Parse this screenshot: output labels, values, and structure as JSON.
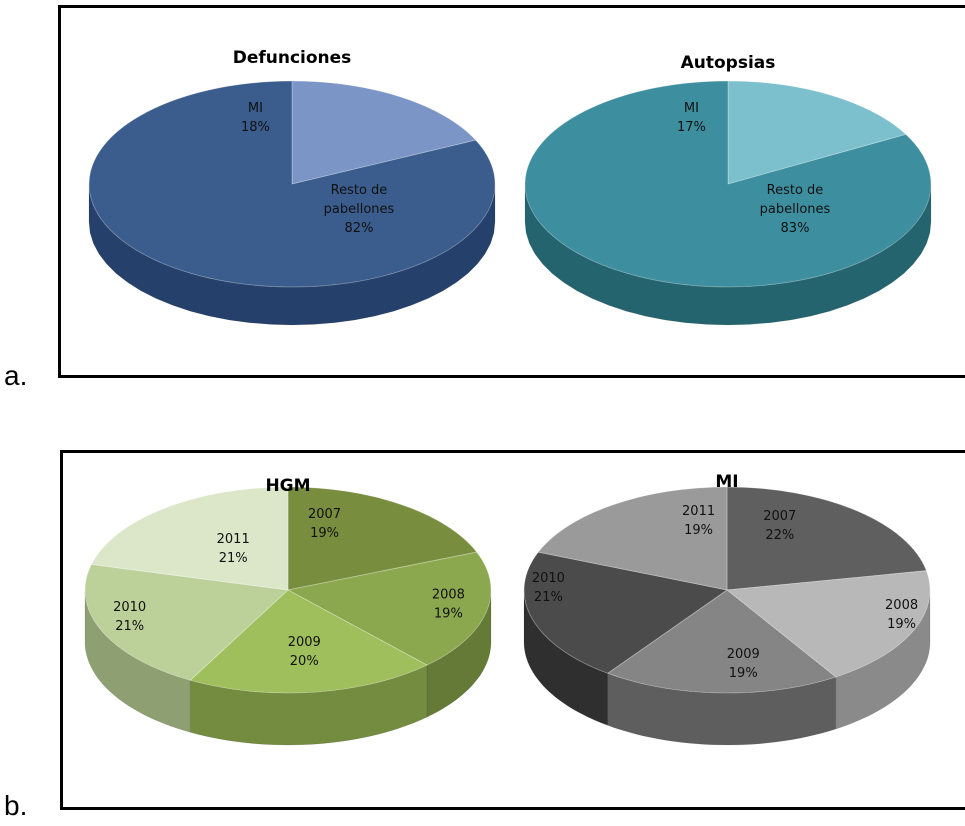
{
  "panels": [
    {
      "letter": "a."
    },
    {
      "letter": "b."
    }
  ],
  "chart_data": [
    {
      "type": "pie",
      "title": "Defunciones",
      "slices": [
        {
          "label": "MI",
          "value": 18,
          "pct_text": "18%",
          "color": "#7b95c6",
          "side": "#5b6f98"
        },
        {
          "label": "Resto de pabellones",
          "label_lines": [
            "Resto de",
            "pabellones"
          ],
          "value": 82,
          "pct_text": "82%",
          "color": "#3a5d8e",
          "side": "#25406a"
        }
      ]
    },
    {
      "type": "pie",
      "title": "Autopsias",
      "slices": [
        {
          "label": "MI",
          "value": 17,
          "pct_text": "17%",
          "color": "#7cbfcd",
          "side": "#5a9aa8"
        },
        {
          "label": "Resto de pabellones",
          "label_lines": [
            "Resto de",
            "pabellones"
          ],
          "value": 83,
          "pct_text": "83%",
          "color": "#3d8f9f",
          "side": "#24646f"
        }
      ]
    },
    {
      "type": "pie",
      "title": "HGM",
      "slices": [
        {
          "label": "2007",
          "value": 19,
          "pct_text": "19%",
          "color": "#788e3e",
          "side": "#55662a"
        },
        {
          "label": "2008",
          "value": 19,
          "pct_text": "19%",
          "color": "#8ca84e",
          "side": "#647a36"
        },
        {
          "label": "2009",
          "value": 20,
          "pct_text": "20%",
          "color": "#9ebf5b",
          "side": "#738c3f"
        },
        {
          "label": "2010",
          "value": 21,
          "pct_text": "21%",
          "color": "#bcd199",
          "side": "#8e9f72"
        },
        {
          "label": "2011",
          "value": 21,
          "pct_text": "21%",
          "color": "#dce7c9",
          "side": "#a9b397"
        }
      ]
    },
    {
      "type": "pie",
      "title": "MI",
      "slices": [
        {
          "label": "2007",
          "value": 22,
          "pct_text": "22%",
          "color": "#5f5f5f",
          "side": "#3e3e3e"
        },
        {
          "label": "2008",
          "value": 19,
          "pct_text": "19%",
          "color": "#b8b8b8",
          "side": "#8a8a8a"
        },
        {
          "label": "2009",
          "value": 19,
          "pct_text": "19%",
          "color": "#858585",
          "side": "#5e5e5e"
        },
        {
          "label": "2010",
          "value": 21,
          "pct_text": "21%",
          "color": "#4b4b4b",
          "side": "#2f2f2f"
        },
        {
          "label": "2011",
          "value": 19,
          "pct_text": "19%",
          "color": "#9a9a9a",
          "side": "#6f6f6f"
        }
      ]
    }
  ]
}
